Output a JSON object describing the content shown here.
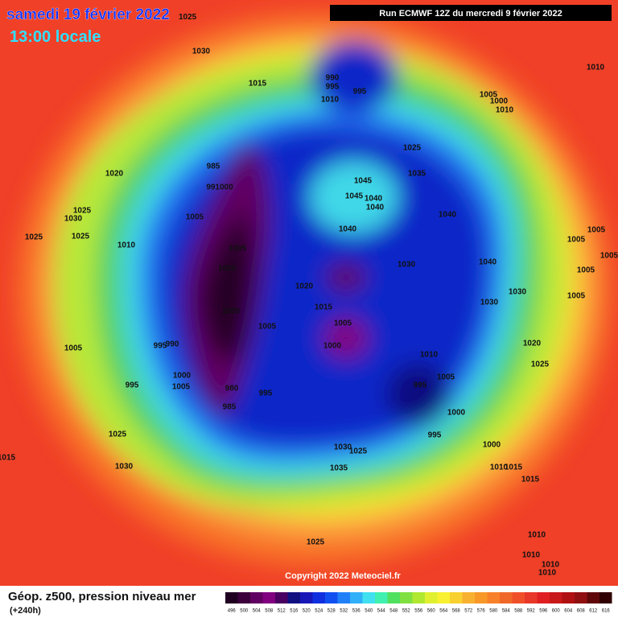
{
  "header": {
    "date": "samedi 19 février 2022",
    "date_note": "1025",
    "time": "13:00 locale",
    "run": "Run ECMWF 12Z du mercredi 9 février 2022"
  },
  "pressure_labels": [
    "1030",
    "1015",
    "990",
    "995",
    "1010",
    "995",
    "1005",
    "1000",
    "1010",
    "1010",
    "1025",
    "1035",
    "985",
    "991000",
    "1020",
    "1045",
    "1045",
    "1040",
    "1040",
    "1040",
    "1040",
    "1025",
    "1030",
    "1025",
    "1025",
    "1005",
    "1010",
    "1005",
    "1005",
    "1030",
    "1040",
    "1005",
    "1005",
    "1005",
    "1005",
    "1020",
    "1030",
    "1030",
    "1005",
    "1015",
    "1005",
    "1005",
    "1005",
    "995",
    "990",
    "1000",
    "1005",
    "1020",
    "1010",
    "1025",
    "1005",
    "1000",
    "995",
    "1005",
    "980",
    "995",
    "995",
    "985",
    "1000",
    "995",
    "1025",
    "1000",
    "1030",
    "1025",
    "1015",
    "1030",
    "1035",
    "1010",
    "1015",
    "1015",
    "1025",
    "1010",
    "1010",
    "1010",
    "1010"
  ],
  "copyright": "Copyright 2022 Meteociel.fr",
  "footer": {
    "title": "Géop. z500, pression niveau mer",
    "lead": "(+240h)"
  },
  "legend": {
    "labels": [
      "496",
      "500",
      "504",
      "508",
      "512",
      "516",
      "520",
      "524",
      "528",
      "532",
      "536",
      "540",
      "544",
      "548",
      "552",
      "556",
      "560",
      "564",
      "568",
      "572",
      "576",
      "580",
      "584",
      "588",
      "592",
      "596",
      "600",
      "604",
      "608",
      "612",
      "616"
    ],
    "colors": [
      "#200020",
      "#3c003c",
      "#600060",
      "#800080",
      "#4a0060",
      "#101080",
      "#1818b8",
      "#1030e0",
      "#1050f0",
      "#2080f8",
      "#30b0f8",
      "#40e0f0",
      "#40f0b0",
      "#50e060",
      "#80e040",
      "#b0e830",
      "#e0f030",
      "#f8f030",
      "#f8d030",
      "#f8b030",
      "#f89828",
      "#f88028",
      "#f06828",
      "#f05028",
      "#e83828",
      "#e02020",
      "#c81818",
      "#b01010",
      "#901010",
      "#600808",
      "#300000"
    ]
  }
}
